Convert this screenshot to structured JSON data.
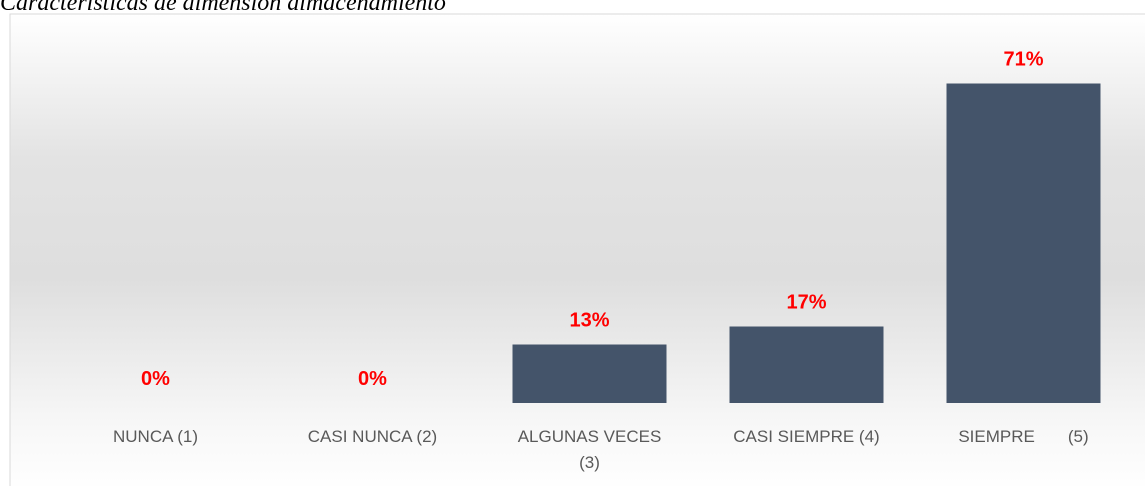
{
  "chart_data": {
    "type": "bar",
    "title": "Características de dimensión almacenamiento",
    "categories": [
      "NUNCA (1)",
      "CASI NUNCA (2)",
      "ALGUNAS VECES (3)",
      "CASI SIEMPRE (4)",
      "SIEMPRE       (5)"
    ],
    "values": [
      0,
      0,
      13,
      17,
      71
    ],
    "value_labels": [
      "0%",
      "0%",
      "13%",
      "17%",
      "71%"
    ],
    "color": "#44546a",
    "label_color": "#ff0000",
    "ylim": [
      0,
      80
    ]
  }
}
